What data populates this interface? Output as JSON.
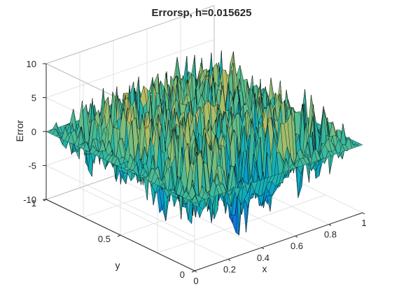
{
  "chart_data": {
    "type": "surface",
    "title": "Errorsp, h=0.015625",
    "xlabel": "x",
    "ylabel": "y",
    "zlabel": "Error",
    "xlim": [
      0,
      1
    ],
    "ylim": [
      0,
      1
    ],
    "zlim": [
      -10,
      10
    ],
    "x_ticks": [
      0,
      0.2,
      0.4,
      0.6,
      0.8,
      1
    ],
    "x_tick_labels": [
      "0",
      "0.2",
      "0.4",
      "0.6",
      "0.8",
      "1"
    ],
    "y_ticks": [
      0,
      0.5,
      1
    ],
    "y_tick_labels": [
      "0",
      "0.5",
      "1"
    ],
    "z_ticks": [
      -10,
      -5,
      0,
      5,
      10
    ],
    "z_tick_labels": [
      "-10",
      "-5",
      "0",
      "5",
      "10"
    ],
    "grid": true,
    "colormap": "parula",
    "surface_edge_color": "#000000",
    "error_amplitude_interior": 6,
    "error_amplitude_near_boundary": 4
  }
}
